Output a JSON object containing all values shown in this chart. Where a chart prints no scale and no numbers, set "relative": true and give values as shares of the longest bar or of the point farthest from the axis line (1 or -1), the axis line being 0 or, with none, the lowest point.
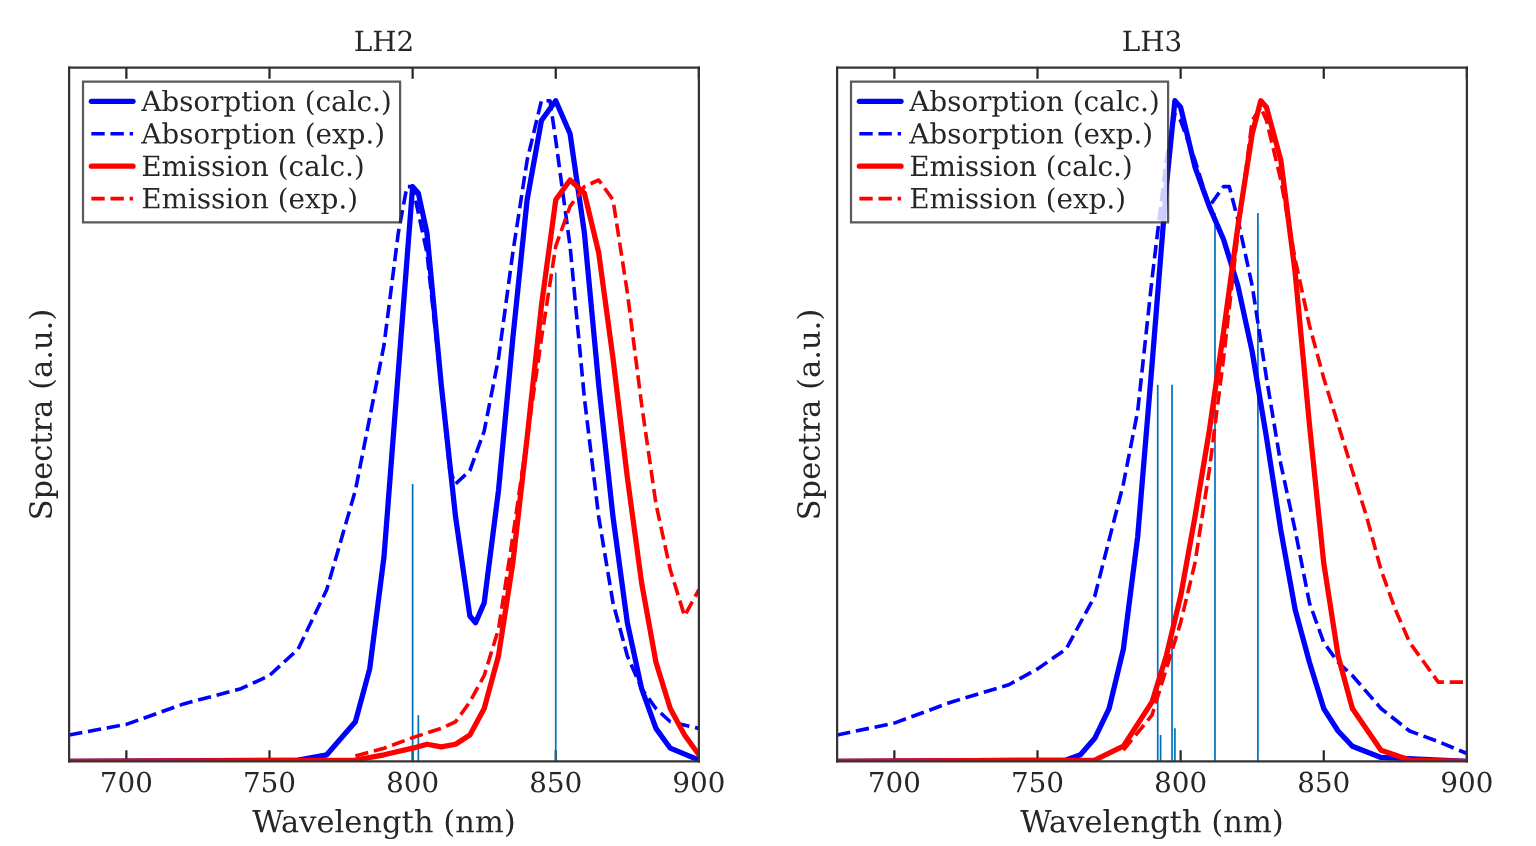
{
  "chart_data": [
    {
      "type": "line",
      "title": "LH2",
      "xlabel": "Wavelength (nm)",
      "ylabel": "Spectra (a.u.)",
      "relative": true,
      "xlim": [
        680,
        900
      ],
      "xticks": [
        700,
        750,
        800,
        850,
        900
      ],
      "legend": "top left",
      "grid": false,
      "tick_labels": "x",
      "series": [
        {
          "name": "Absorption (calc.)",
          "color": "#0000ff",
          "line_style": "solid",
          "x": [
            680,
            760,
            770,
            780,
            785,
            790,
            795,
            800,
            802,
            805,
            810,
            815,
            820,
            822,
            825,
            830,
            835,
            840,
            845,
            850,
            855,
            860,
            865,
            870,
            875,
            880,
            885,
            890,
            900
          ],
          "values": [
            0,
            0.002,
            0.01,
            0.06,
            0.14,
            0.31,
            0.59,
            0.87,
            0.86,
            0.8,
            0.57,
            0.37,
            0.22,
            0.21,
            0.24,
            0.41,
            0.64,
            0.85,
            0.97,
            1.0,
            0.95,
            0.8,
            0.57,
            0.37,
            0.21,
            0.11,
            0.05,
            0.02,
            0.002
          ]
        },
        {
          "name": "Absorption (exp.)",
          "color": "#0000ff",
          "line_style": "dashed",
          "x": [
            680,
            700,
            720,
            740,
            750,
            760,
            770,
            780,
            790,
            795,
            798,
            800,
            805,
            810,
            813,
            815,
            820,
            825,
            830,
            835,
            840,
            845,
            848,
            850,
            855,
            860,
            865,
            870,
            875,
            880,
            885,
            890,
            900
          ],
          "values": [
            0.04,
            0.056,
            0.087,
            0.11,
            0.13,
            0.17,
            0.26,
            0.41,
            0.63,
            0.8,
            0.87,
            0.87,
            0.77,
            0.57,
            0.44,
            0.42,
            0.44,
            0.5,
            0.61,
            0.77,
            0.91,
            1.0,
            1.0,
            0.94,
            0.78,
            0.55,
            0.37,
            0.24,
            0.16,
            0.11,
            0.08,
            0.06,
            0.05
          ]
        },
        {
          "name": "Emission (calc.)",
          "color": "#ff0000",
          "line_style": "solid",
          "x": [
            680,
            780,
            790,
            800,
            805,
            810,
            815,
            820,
            825,
            830,
            835,
            840,
            845,
            850,
            855,
            860,
            865,
            870,
            875,
            880,
            885,
            890,
            895,
            900
          ],
          "values": [
            0,
            0.002,
            0.01,
            0.02,
            0.026,
            0.022,
            0.026,
            0.04,
            0.08,
            0.16,
            0.3,
            0.49,
            0.69,
            0.85,
            0.88,
            0.86,
            0.77,
            0.61,
            0.43,
            0.27,
            0.15,
            0.08,
            0.04,
            0.01
          ]
        },
        {
          "name": "Emission (exp.)",
          "color": "#ff0000",
          "line_style": "dashed",
          "x": [
            780,
            790,
            800,
            810,
            815,
            820,
            825,
            830,
            835,
            840,
            845,
            850,
            855,
            860,
            865,
            870,
            875,
            880,
            885,
            890,
            895,
            900
          ],
          "values": [
            0.008,
            0.02,
            0.036,
            0.05,
            0.06,
            0.09,
            0.13,
            0.2,
            0.34,
            0.49,
            0.64,
            0.78,
            0.84,
            0.87,
            0.88,
            0.85,
            0.71,
            0.54,
            0.39,
            0.29,
            0.22,
            0.26
          ]
        },
        {
          "type": "bar",
          "color": "#0072bd",
          "x": [
            800,
            802,
            850
          ],
          "values": [
            0.42,
            0.07,
            0.74
          ]
        }
      ]
    },
    {
      "type": "line",
      "title": "LH3",
      "xlabel": "Wavelength (nm)",
      "ylabel": "Spectra (a.u.)",
      "relative": true,
      "xlim": [
        680,
        900
      ],
      "xticks": [
        700,
        750,
        800,
        850,
        900
      ],
      "legend": "top left",
      "grid": false,
      "tick_labels": "x",
      "series": [
        {
          "name": "Absorption (calc.)",
          "color": "#0000ff",
          "line_style": "solid",
          "x": [
            680,
            760,
            765,
            770,
            775,
            780,
            785,
            790,
            795,
            798,
            800,
            805,
            810,
            815,
            820,
            825,
            830,
            835,
            840,
            845,
            850,
            855,
            860,
            870,
            900
          ],
          "values": [
            0,
            0.002,
            0.01,
            0.035,
            0.08,
            0.17,
            0.34,
            0.6,
            0.87,
            1.0,
            0.99,
            0.9,
            0.84,
            0.79,
            0.72,
            0.62,
            0.49,
            0.35,
            0.23,
            0.15,
            0.08,
            0.046,
            0.023,
            0.006,
            0
          ]
        },
        {
          "name": "Absorption (exp.)",
          "color": "#0000ff",
          "line_style": "dashed",
          "x": [
            680,
            700,
            720,
            740,
            750,
            760,
            770,
            780,
            785,
            790,
            795,
            798,
            800,
            805,
            810,
            815,
            817,
            820,
            825,
            830,
            835,
            840,
            845,
            850,
            855,
            860,
            870,
            880,
            890,
            900
          ],
          "values": [
            0.04,
            0.058,
            0.09,
            0.116,
            0.14,
            0.17,
            0.25,
            0.42,
            0.53,
            0.73,
            0.91,
            0.98,
            0.97,
            0.91,
            0.84,
            0.87,
            0.87,
            0.82,
            0.72,
            0.58,
            0.45,
            0.35,
            0.24,
            0.18,
            0.15,
            0.13,
            0.08,
            0.046,
            0.03,
            0.012
          ]
        },
        {
          "name": "Emission (calc.)",
          "color": "#ff0000",
          "line_style": "solid",
          "x": [
            680,
            770,
            780,
            790,
            795,
            800,
            805,
            810,
            815,
            820,
            825,
            828,
            830,
            835,
            840,
            845,
            850,
            855,
            860,
            870,
            880,
            900
          ],
          "values": [
            0,
            0.002,
            0.023,
            0.09,
            0.16,
            0.25,
            0.37,
            0.5,
            0.65,
            0.81,
            0.95,
            1.0,
            0.99,
            0.91,
            0.74,
            0.51,
            0.3,
            0.16,
            0.08,
            0.017,
            0.002,
            0
          ]
        },
        {
          "name": "Emission (exp.)",
          "color": "#ff0000",
          "line_style": "dashed",
          "x": [
            780,
            790,
            800,
            805,
            810,
            815,
            820,
            825,
            828,
            830,
            835,
            840,
            845,
            850,
            855,
            860,
            865,
            870,
            875,
            880,
            885,
            890,
            900
          ],
          "values": [
            0.017,
            0.07,
            0.21,
            0.3,
            0.44,
            0.61,
            0.8,
            0.97,
            0.99,
            0.97,
            0.88,
            0.76,
            0.66,
            0.58,
            0.51,
            0.44,
            0.37,
            0.29,
            0.23,
            0.18,
            0.15,
            0.12,
            0.12
          ]
        },
        {
          "type": "bar",
          "color": "#0072bd",
          "x": [
            792,
            793,
            797,
            798,
            812,
            827
          ],
          "values": [
            0.57,
            0.04,
            0.57,
            0.05,
            0.83,
            0.83
          ]
        }
      ]
    }
  ]
}
